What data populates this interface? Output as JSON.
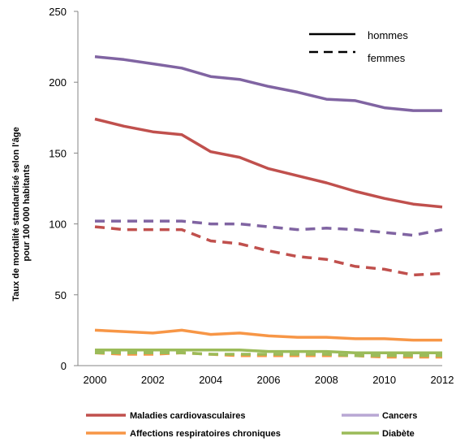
{
  "chart_data": {
    "type": "line",
    "x": [
      2000,
      2001,
      2002,
      2003,
      2004,
      2005,
      2006,
      2007,
      2008,
      2009,
      2010,
      2011,
      2012
    ],
    "x_ticks": [
      2000,
      2002,
      2004,
      2006,
      2008,
      2010,
      2012
    ],
    "y_ticks": [
      0,
      50,
      100,
      150,
      200,
      250
    ],
    "xlim": [
      2000,
      2012
    ],
    "ylim": [
      0,
      250
    ],
    "ylabel_lines": [
      "Taux de mortalité standardisé selon l'âge",
      "pour 100 000 habitants"
    ],
    "grid": false,
    "line_style_legend": [
      {
        "label": "hommes",
        "style": "solid"
      },
      {
        "label": "femmes",
        "style": "dashed"
      }
    ],
    "color_legend": [
      {
        "label": "Maladies cardiovasculaires",
        "color": "#c0504d"
      },
      {
        "label": "Cancers",
        "color": "#8064a2"
      },
      {
        "label": "Affections respiratoires chroniques",
        "color": "#f79646"
      },
      {
        "label": "Diabète",
        "color": "#9bbb59"
      }
    ],
    "series": [
      {
        "group": "Cancers",
        "sex": "hommes",
        "style": "solid",
        "color": "#8064a2",
        "values": [
          218,
          216,
          213,
          210,
          204,
          202,
          197,
          193,
          188,
          187,
          182,
          180,
          180
        ]
      },
      {
        "group": "Cancers",
        "sex": "femmes",
        "style": "dashed",
        "color": "#8064a2",
        "values": [
          102,
          102,
          102,
          102,
          100,
          100,
          98,
          96,
          97,
          96,
          94,
          92,
          96
        ]
      },
      {
        "group": "Maladies cardiovasculaires",
        "sex": "hommes",
        "style": "solid",
        "color": "#c0504d",
        "values": [
          174,
          169,
          165,
          163,
          151,
          147,
          139,
          134,
          129,
          123,
          118,
          114,
          112
        ]
      },
      {
        "group": "Maladies cardiovasculaires",
        "sex": "femmes",
        "style": "dashed",
        "color": "#c0504d",
        "values": [
          98,
          96,
          96,
          96,
          88,
          86,
          81,
          77,
          75,
          70,
          68,
          64,
          65
        ]
      },
      {
        "group": "Affections respiratoires chroniques",
        "sex": "hommes",
        "style": "solid",
        "color": "#f79646",
        "values": [
          25,
          24,
          23,
          25,
          22,
          23,
          21,
          20,
          20,
          19,
          19,
          18,
          18
        ]
      },
      {
        "group": "Affections respiratoires chroniques",
        "sex": "femmes",
        "style": "dashed",
        "color": "#f79646",
        "values": [
          9,
          8,
          8,
          9,
          8,
          7,
          7,
          7,
          7,
          7,
          6,
          6,
          6
        ]
      },
      {
        "group": "Diabète",
        "sex": "hommes",
        "style": "solid",
        "color": "#9bbb59",
        "values": [
          11,
          11,
          11,
          11,
          11,
          11,
          10,
          10,
          10,
          9,
          9,
          9,
          9
        ]
      },
      {
        "group": "Diabète",
        "sex": "femmes",
        "style": "dashed",
        "color": "#9bbb59",
        "values": [
          9,
          9,
          9,
          9,
          8,
          8,
          8,
          8,
          8,
          7,
          7,
          7,
          7
        ]
      }
    ]
  }
}
